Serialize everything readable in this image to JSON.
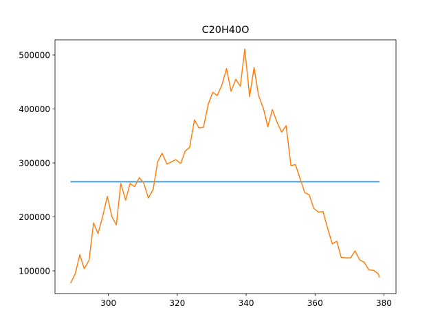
{
  "chart_data": {
    "type": "line",
    "title": "C20H40O",
    "xlabel": "",
    "ylabel": "",
    "xlim": [
      284.5,
      383.5
    ],
    "ylim": [
      58000,
      528000
    ],
    "xticks": [
      300,
      320,
      340,
      360,
      380
    ],
    "yticks": [
      100000,
      200000,
      300000,
      400000,
      500000
    ],
    "grid": false,
    "legend": "none",
    "series": [
      {
        "color": "#1f77b4",
        "x": [
          289,
          378.7
        ],
        "y": [
          265000,
          265000
        ]
      },
      {
        "color": "#ff7f0e",
        "x": [
          289.0,
          290.4,
          291.7,
          293.0,
          294.4,
          295.7,
          297.0,
          298.3,
          299.7,
          301.0,
          302.3,
          303.6,
          305.0,
          306.3,
          307.6,
          309.0,
          310.3,
          311.6,
          313.0,
          314.3,
          315.6,
          317.0,
          318.3,
          319.6,
          321.0,
          322.3,
          323.6,
          325.0,
          326.3,
          327.6,
          329.0,
          330.3,
          331.6,
          333.0,
          334.3,
          335.6,
          337.0,
          338.3,
          339.6,
          341.0,
          342.3,
          343.6,
          345.0,
          346.3,
          347.6,
          349.0,
          350.3,
          351.6,
          353.0,
          354.3,
          355.6,
          357.0,
          358.3,
          359.6,
          361.0,
          362.3,
          363.6,
          365.0,
          366.3,
          367.6,
          369.0,
          370.3,
          371.6,
          373.0,
          374.3,
          375.6,
          377.0,
          378.3,
          378.7
        ],
        "y": [
          77000,
          95000,
          130000,
          104000,
          120000,
          189000,
          169000,
          200000,
          238000,
          201000,
          185000,
          262000,
          231000,
          262000,
          256000,
          273000,
          262000,
          235000,
          251000,
          302000,
          318000,
          298000,
          302000,
          306000,
          299000,
          322000,
          329000,
          380000,
          365000,
          366000,
          409000,
          431000,
          425000,
          445000,
          475000,
          433000,
          455000,
          442000,
          511000,
          423000,
          477000,
          425000,
          401000,
          367000,
          399000,
          375000,
          357000,
          369000,
          295000,
          297000,
          272000,
          245000,
          241000,
          216000,
          209000,
          210000,
          180000,
          150000,
          155000,
          125000,
          124000,
          124000,
          137000,
          120000,
          116000,
          102000,
          101000,
          95000,
          88000
        ]
      }
    ]
  }
}
